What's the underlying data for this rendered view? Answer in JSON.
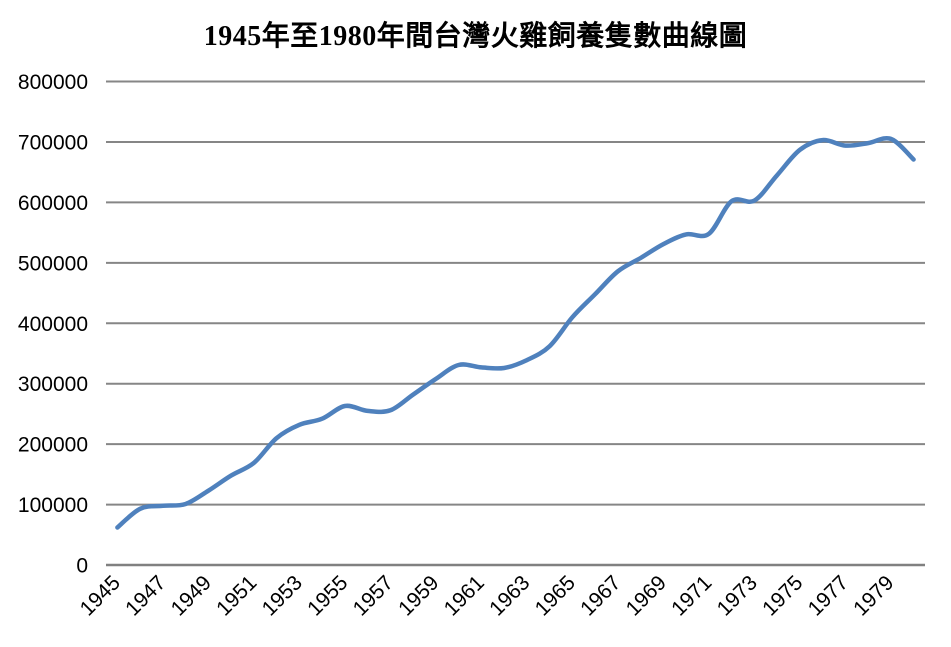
{
  "chart_data": {
    "type": "line",
    "title": "1945年至1980年間台灣火雞飼養隻數曲線圖",
    "xlabel": "",
    "ylabel": "",
    "x": [
      1945,
      1946,
      1947,
      1948,
      1949,
      1950,
      1951,
      1952,
      1953,
      1954,
      1955,
      1956,
      1957,
      1958,
      1959,
      1960,
      1961,
      1962,
      1963,
      1964,
      1965,
      1966,
      1967,
      1968,
      1969,
      1970,
      1971,
      1972,
      1973,
      1974,
      1975,
      1976,
      1977,
      1978,
      1979,
      1980
    ],
    "values": [
      62000,
      93000,
      98000,
      101000,
      123000,
      148000,
      169000,
      210000,
      232000,
      242000,
      263000,
      255000,
      256000,
      282000,
      308000,
      331000,
      327000,
      326000,
      339000,
      362000,
      410000,
      448000,
      486000,
      508000,
      531000,
      547000,
      548000,
      602000,
      603000,
      645000,
      687000,
      703000,
      694000,
      698000,
      705000,
      671000
    ],
    "x_tick_labels": [
      "1945",
      "1947",
      "1949",
      "1951",
      "1953",
      "1955",
      "1957",
      "1959",
      "1961",
      "1963",
      "1965",
      "1967",
      "1969",
      "1971",
      "1973",
      "1975",
      "1977",
      "1979"
    ],
    "x_tick_every": 2,
    "y_ticks": [
      0,
      100000,
      200000,
      300000,
      400000,
      500000,
      600000,
      700000,
      800000
    ],
    "ylim": [
      0,
      800000
    ],
    "grid": true,
    "legend": false,
    "smooth": true,
    "colors": {
      "line": "#4F81BD",
      "gridline": "#868686",
      "axis_line": "#808080",
      "text": "#000000",
      "background": "#ffffff"
    }
  }
}
